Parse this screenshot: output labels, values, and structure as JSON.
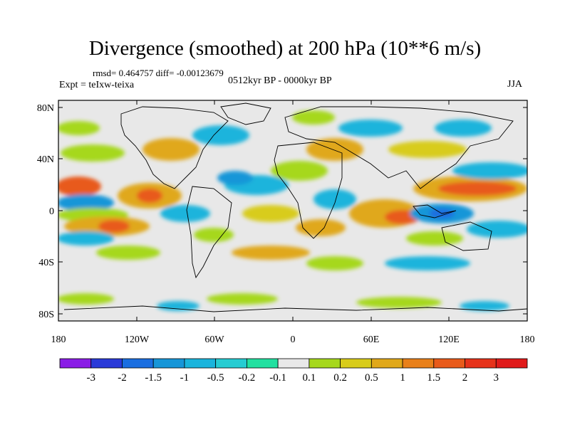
{
  "title": "Divergence (smoothed) at 200 hPa (10**6 m/s)",
  "stats": "rmsd= 0.464757  diff= -0.00123679",
  "period": "0512kyr BP - 0000kyr BP",
  "expt": "Expt = teIxw-teixa",
  "season": "JJA",
  "axes": {
    "y_ticks": [
      "80N",
      "40N",
      "0",
      "40S",
      "80S"
    ],
    "x_ticks": [
      "180",
      "120W",
      "60W",
      "0",
      "60E",
      "120E",
      "180"
    ]
  },
  "colorbar": {
    "labels": [
      "-3",
      "-2",
      "-1.5",
      "-1",
      "-0.5",
      "-0.2",
      "-0.1",
      "0.1",
      "0.2",
      "0.5",
      "1",
      "1.5",
      "2",
      "3"
    ],
    "colors": [
      "#8a1ce6",
      "#2a3ad8",
      "#1a6ee0",
      "#1796d8",
      "#1ab4dc",
      "#26ccd2",
      "#22e0a0",
      "#e8e8e8",
      "#a6d81c",
      "#d8cc1a",
      "#e0a81a",
      "#e8801a",
      "#e85a1a",
      "#e6321a",
      "#e01a1a"
    ]
  },
  "colors": {
    "land_outline": "#000000",
    "background_field": "#e8e8e8"
  }
}
